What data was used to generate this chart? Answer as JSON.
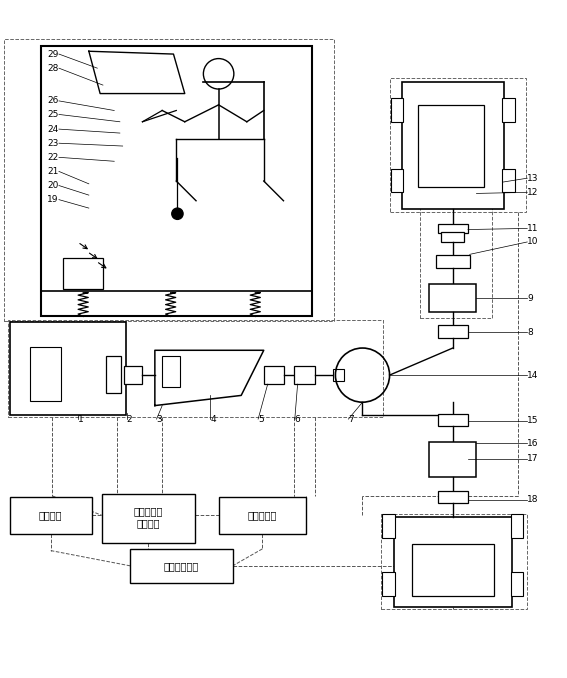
{
  "bg_color": "#ffffff",
  "line_color": "#000000",
  "dashed_color": "#888888",
  "labels_bottom": {
    "data_storage": "数据储存",
    "drive_sim": "驾驶模拟系\n统控制器",
    "vehicle_ctrl": "整车控制器",
    "test_bench": "试验台控制器"
  }
}
